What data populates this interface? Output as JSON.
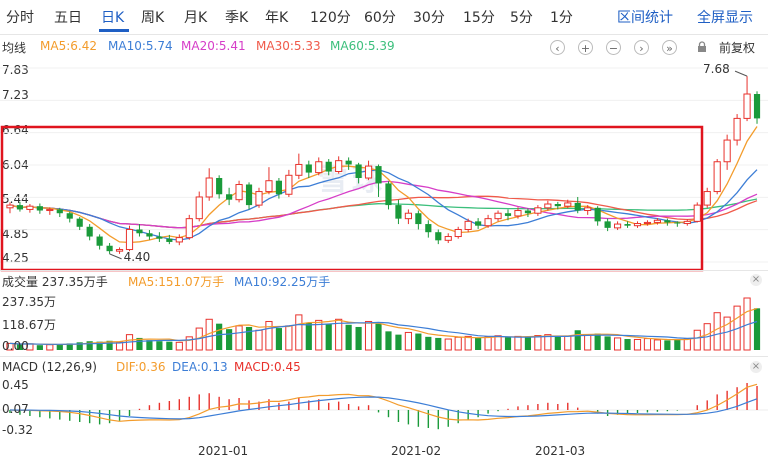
{
  "tabs": [
    {
      "label": "分时"
    },
    {
      "label": "五日"
    },
    {
      "label": "日K"
    },
    {
      "label": "周K"
    },
    {
      "label": "月K"
    },
    {
      "label": "季K"
    },
    {
      "label": "年K"
    },
    {
      "label": "120分"
    },
    {
      "label": "60分"
    },
    {
      "label": "30分"
    },
    {
      "label": "15分"
    },
    {
      "label": "5分"
    },
    {
      "label": "1分"
    }
  ],
  "active_tab": "日K",
  "right_links": {
    "interval_stats": "区间统计",
    "fullscreen": "全屏显示"
  },
  "ma_bar": {
    "label": "均线",
    "items": [
      {
        "text": "MA5:6.42",
        "color": "#f39c2c"
      },
      {
        "text": "MA10:5.74",
        "color": "#3d7ed6"
      },
      {
        "text": "MA20:5.41",
        "color": "#d63ec8"
      },
      {
        "text": "MA30:5.33",
        "color": "#f05a4a"
      },
      {
        "text": "MA60:5.39",
        "color": "#3cbf7c"
      }
    ],
    "adjust": "前复权"
  },
  "price_axis": [
    "7.83",
    "7.23",
    "6.64",
    "6.04",
    "5.44",
    "4.85",
    "4.25"
  ],
  "price_high_label": "7.68",
  "price_low_label": "4.40",
  "watermark": "雪球",
  "volume": {
    "title": "成交量 237.35万手",
    "ma5": "MA5:151.07万手",
    "ma10": "MA10:92.25万手",
    "axis": [
      "237.35万",
      "118.67万",
      "0.00"
    ]
  },
  "macd": {
    "title": "MACD (12,26,9)",
    "dif": "DIF:0.36",
    "dea": "DEA:0.13",
    "macd": "MACD:0.45",
    "axis": [
      "0.45",
      "0.07",
      "-0.32"
    ]
  },
  "x_labels": [
    "2021-01",
    "2021-02",
    "2021-03"
  ],
  "colors": {
    "up": "#e8322c",
    "down": "#1a9a3a",
    "accent": "#1f5fc4",
    "highlight": "#e0141e"
  },
  "chart_data": {
    "type": "candlestick",
    "x_ticks": [
      "2021-01",
      "2021-02",
      "2021-03"
    ],
    "price_range": [
      4.25,
      7.83
    ],
    "marked_high": 7.68,
    "marked_low": 4.4,
    "candles": [
      [
        5.25,
        5.3,
        5.35,
        5.15
      ],
      [
        5.3,
        5.22,
        5.36,
        5.18
      ],
      [
        5.22,
        5.28,
        5.32,
        5.16
      ],
      [
        5.28,
        5.2,
        5.33,
        5.14
      ],
      [
        5.2,
        5.22,
        5.26,
        5.12
      ],
      [
        5.22,
        5.15,
        5.25,
        5.08
      ],
      [
        5.15,
        5.05,
        5.18,
        4.98
      ],
      [
        5.05,
        4.9,
        5.08,
        4.84
      ],
      [
        4.9,
        4.72,
        4.95,
        4.65
      ],
      [
        4.72,
        4.55,
        4.76,
        4.48
      ],
      [
        4.55,
        4.45,
        4.6,
        4.4
      ],
      [
        4.45,
        4.48,
        4.52,
        4.4
      ],
      [
        4.48,
        4.85,
        4.92,
        4.45
      ],
      [
        4.85,
        4.78,
        4.95,
        4.72
      ],
      [
        4.78,
        4.72,
        4.84,
        4.66
      ],
      [
        4.72,
        4.68,
        4.8,
        4.62
      ],
      [
        4.68,
        4.62,
        4.75,
        4.58
      ],
      [
        4.62,
        4.7,
        4.76,
        4.56
      ],
      [
        4.7,
        5.05,
        5.12,
        4.66
      ],
      [
        5.05,
        5.45,
        5.55,
        5.0
      ],
      [
        5.45,
        5.8,
        5.98,
        5.38
      ],
      [
        5.8,
        5.5,
        5.85,
        5.42
      ],
      [
        5.5,
        5.4,
        5.62,
        5.3
      ],
      [
        5.4,
        5.68,
        5.75,
        5.35
      ],
      [
        5.68,
        5.3,
        5.72,
        5.22
      ],
      [
        5.3,
        5.55,
        5.62,
        5.25
      ],
      [
        5.55,
        5.75,
        6.0,
        5.5
      ],
      [
        5.75,
        5.5,
        5.8,
        5.42
      ],
      [
        5.5,
        5.85,
        5.95,
        5.45
      ],
      [
        5.85,
        6.05,
        6.25,
        5.78
      ],
      [
        6.05,
        5.9,
        6.12,
        5.8
      ],
      [
        5.9,
        6.1,
        6.18,
        5.85
      ],
      [
        6.1,
        5.92,
        6.15,
        5.85
      ],
      [
        5.92,
        6.12,
        6.2,
        5.88
      ],
      [
        6.12,
        6.05,
        6.18,
        5.95
      ],
      [
        6.05,
        5.8,
        6.08,
        5.7
      ],
      [
        5.8,
        6.02,
        6.12,
        5.76
      ],
      [
        6.02,
        5.7,
        6.05,
        5.45
      ],
      [
        5.7,
        5.3,
        5.74,
        5.22
      ],
      [
        5.3,
        5.05,
        5.4,
        4.95
      ],
      [
        5.05,
        5.15,
        5.22,
        4.95
      ],
      [
        5.15,
        4.95,
        5.2,
        4.85
      ],
      [
        4.95,
        4.8,
        5.02,
        4.7
      ],
      [
        4.8,
        4.65,
        4.85,
        4.58
      ],
      [
        4.65,
        4.72,
        4.78,
        4.6
      ],
      [
        4.72,
        4.85,
        4.9,
        4.68
      ],
      [
        4.85,
        5.0,
        5.05,
        4.8
      ],
      [
        5.0,
        4.92,
        5.06,
        4.86
      ],
      [
        4.92,
        5.05,
        5.12,
        4.88
      ],
      [
        5.05,
        5.15,
        5.2,
        5.0
      ],
      [
        5.15,
        5.1,
        5.22,
        5.02
      ],
      [
        5.1,
        5.2,
        5.26,
        5.05
      ],
      [
        5.2,
        5.15,
        5.24,
        5.08
      ],
      [
        5.15,
        5.25,
        5.3,
        5.1
      ],
      [
        5.25,
        5.32,
        5.38,
        5.2
      ],
      [
        5.32,
        5.28,
        5.36,
        5.22
      ],
      [
        5.28,
        5.34,
        5.4,
        5.24
      ],
      [
        5.34,
        5.2,
        5.45,
        5.15
      ],
      [
        5.2,
        5.25,
        5.3,
        5.12
      ],
      [
        5.25,
        5.0,
        5.28,
        4.92
      ],
      [
        5.0,
        4.88,
        5.05,
        4.82
      ],
      [
        4.88,
        4.95,
        5.0,
        4.84
      ],
      [
        4.95,
        4.92,
        5.0,
        4.88
      ],
      [
        4.92,
        4.96,
        5.0,
        4.88
      ],
      [
        4.96,
        4.98,
        5.02,
        4.92
      ],
      [
        4.98,
        5.02,
        5.06,
        4.94
      ],
      [
        5.02,
        4.98,
        5.05,
        4.92
      ],
      [
        4.98,
        4.96,
        5.0,
        4.9
      ],
      [
        4.96,
        5.0,
        5.04,
        4.92
      ],
      [
        5.0,
        5.3,
        5.35,
        4.98
      ],
      [
        5.3,
        5.55,
        5.62,
        5.25
      ],
      [
        5.55,
        6.1,
        6.15,
        5.5
      ],
      [
        6.1,
        6.5,
        6.6,
        5.95
      ],
      [
        6.5,
        6.9,
        6.98,
        6.4
      ],
      [
        6.9,
        7.35,
        7.68,
        6.85
      ],
      [
        7.35,
        6.9,
        7.4,
        6.8
      ]
    ],
    "volumes": [
      0.3,
      0.25,
      0.28,
      0.22,
      0.24,
      0.26,
      0.3,
      0.35,
      0.4,
      0.38,
      0.42,
      0.36,
      0.7,
      0.55,
      0.45,
      0.4,
      0.38,
      0.35,
      0.6,
      1.0,
      1.4,
      1.2,
      0.95,
      1.1,
      1.05,
      0.9,
      1.3,
      1.0,
      1.1,
      1.6,
      1.25,
      1.35,
      1.2,
      1.4,
      1.15,
      1.05,
      1.3,
      1.2,
      0.85,
      0.7,
      0.8,
      0.75,
      0.6,
      0.55,
      0.5,
      0.58,
      0.62,
      0.55,
      0.6,
      0.65,
      0.58,
      0.62,
      0.6,
      0.66,
      0.7,
      0.6,
      0.64,
      0.9,
      0.7,
      0.75,
      0.62,
      0.55,
      0.5,
      0.48,
      0.52,
      0.46,
      0.44,
      0.48,
      0.5,
      0.9,
      1.2,
      1.7,
      1.5,
      2.0,
      2.37,
      1.9
    ],
    "macd_hist": [
      -0.05,
      -0.08,
      -0.1,
      -0.12,
      -0.14,
      -0.16,
      -0.18,
      -0.2,
      -0.22,
      -0.24,
      -0.22,
      -0.18,
      -0.1,
      0.02,
      0.08,
      0.12,
      0.15,
      0.18,
      0.22,
      0.26,
      0.28,
      0.22,
      0.18,
      0.2,
      0.16,
      0.14,
      0.18,
      0.12,
      0.14,
      0.2,
      0.16,
      0.18,
      0.12,
      0.14,
      0.1,
      0.06,
      0.08,
      -0.04,
      -0.12,
      -0.2,
      -0.24,
      -0.28,
      -0.3,
      -0.32,
      -0.28,
      -0.22,
      -0.16,
      -0.12,
      -0.06,
      -0.02,
      0.02,
      0.06,
      0.08,
      0.1,
      0.12,
      0.1,
      0.12,
      0.04,
      0.0,
      -0.06,
      -0.1,
      -0.08,
      -0.06,
      -0.05,
      -0.04,
      -0.03,
      -0.02,
      -0.01,
      0.0,
      0.08,
      0.16,
      0.26,
      0.32,
      0.38,
      0.45,
      0.4
    ]
  }
}
